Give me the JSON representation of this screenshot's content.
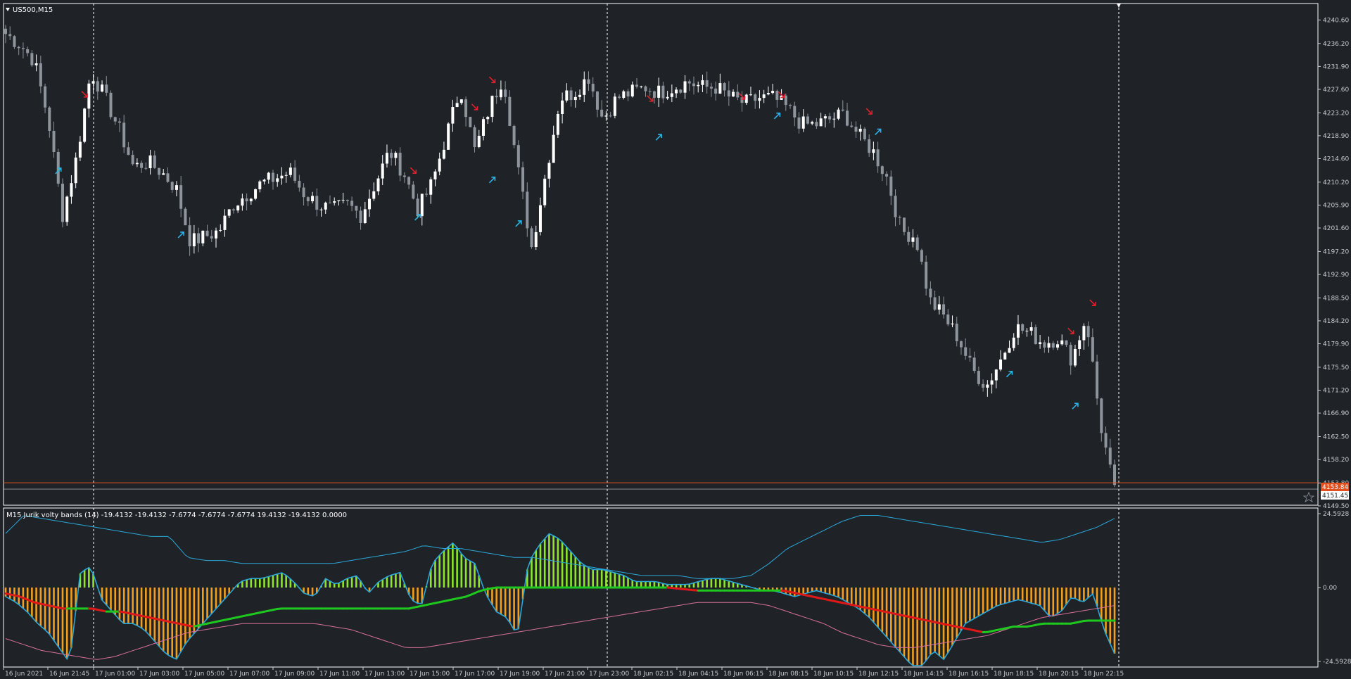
{
  "symbol_label": "US500,M15",
  "indicator_label": "M15 Jurik volty bands (14) -19.4132 -19.4132 -7.6774 -7.6774 -7.6774 19.4132 -19.4132 0.0000",
  "price_badges": {
    "bid": "4153.84",
    "ask": "4151.45"
  },
  "colors": {
    "background": "#1f2328",
    "grid_border": "#ffffff",
    "bull_candle": "#ffffff",
    "bear_candle": "#8d949c",
    "up_arrow": "#2ab3e6",
    "down_arrow": "#e0202a",
    "bid_line": "#e0501e",
    "hist_positive": "#8ee52a",
    "hist_negative": "#f0a01e",
    "upper_band": "#2aa7d8",
    "lower_band": "#d86f9a",
    "jurik_up": "#1fc81f",
    "jurik_down": "#e01818"
  },
  "chart_data": [
    {
      "type": "candlestick",
      "title": "US500,M15",
      "ylim": [
        4149.5,
        4242.5
      ],
      "y_ticks": [
        "4240.60",
        "4236.20",
        "4231.90",
        "4227.60",
        "4223.20",
        "4218.90",
        "4214.60",
        "4210.20",
        "4205.90",
        "4201.60",
        "4197.20",
        "4192.90",
        "4188.50",
        "4184.20",
        "4179.90",
        "4175.50",
        "4171.20",
        "4166.90",
        "4162.50",
        "4158.20",
        "4153.80",
        "4149.50"
      ],
      "x_ticks": [
        "16 Jun 2021",
        "16 Jun 21:45",
        "17 Jun 01:00",
        "17 Jun 03:00",
        "17 Jun 05:00",
        "17 Jun 07:00",
        "17 Jun 09:00",
        "17 Jun 11:00",
        "17 Jun 13:00",
        "17 Jun 15:00",
        "17 Jun 17:00",
        "17 Jun 19:00",
        "17 Jun 21:00",
        "17 Jun 23:00",
        "18 Jun 02:15",
        "18 Jun 04:15",
        "18 Jun 06:15",
        "18 Jun 08:15",
        "18 Jun 10:15",
        "18 Jun 12:15",
        "18 Jun 14:15",
        "18 Jun 16:15",
        "18 Jun 18:15",
        "18 Jun 20:15",
        "18 Jun 22:15"
      ],
      "close_anchors": [
        4238,
        4236,
        4233,
        4222,
        4204,
        4215,
        4231,
        4226,
        4220,
        4213,
        4214,
        4212,
        4209,
        4199,
        4200,
        4201,
        4206,
        4208,
        4210,
        4211,
        4212,
        4208,
        4206,
        4205,
        4206,
        4204,
        4210,
        4216,
        4212,
        4205,
        4210,
        4219,
        4228,
        4216,
        4224,
        4230,
        4213,
        4198,
        4212,
        4226,
        4227,
        4230,
        4222,
        4226,
        4227,
        4228,
        4227,
        4228,
        4229,
        4228,
        4228,
        4226,
        4225,
        4226,
        4226,
        4224,
        4221,
        4221,
        4222,
        4223,
        4219,
        4216,
        4211,
        4201,
        4200,
        4188,
        4185,
        4181,
        4175,
        4172,
        4177,
        4183,
        4182,
        4180,
        4181,
        4177,
        4185,
        4165,
        4152
      ],
      "up_arrows": [
        [
          12,
          4212.3
        ],
        [
          40,
          4200.3
        ],
        [
          94,
          4203.6
        ],
        [
          111,
          4210.6
        ],
        [
          117,
          4202.4
        ],
        [
          149,
          4218.6
        ],
        [
          176,
          4222.6
        ],
        [
          199,
          4219.6
        ],
        [
          229,
          4174.2
        ],
        [
          244,
          4168.2
        ]
      ],
      "down_arrows": [
        [
          18,
          4226.7
        ],
        [
          93,
          4212.4
        ],
        [
          107,
          4224.3
        ],
        [
          111,
          4229.4
        ],
        [
          147,
          4225.9
        ],
        [
          168,
          4226.3
        ],
        [
          177,
          4226.6
        ],
        [
          197,
          4223.5
        ],
        [
          243,
          4182.3
        ],
        [
          248,
          4187.6
        ]
      ],
      "current_price": 4153.84,
      "bars": 254
    },
    {
      "type": "histogram-bands",
      "title": "M15 Jurik volty bands (14)",
      "ylim": [
        -24.5928,
        24.5928
      ],
      "y_ticks": [
        "24.5928",
        "0.00",
        "-24.5928"
      ],
      "histogram_anchors": [
        -3,
        -5,
        -8,
        -12,
        -15,
        -20,
        -25,
        5,
        7,
        -4,
        -8,
        -12,
        -12,
        -14,
        -18,
        -22,
        -24,
        -18,
        -14,
        -10,
        -6,
        -2,
        2,
        3,
        3,
        4,
        5,
        2,
        -2,
        -3,
        3,
        1,
        3,
        4,
        -2,
        2,
        4,
        5,
        -4,
        -6,
        8,
        12,
        15,
        10,
        8,
        -2,
        -8,
        -10,
        -16,
        8,
        14,
        18,
        16,
        12,
        8,
        6,
        6,
        5,
        4,
        2,
        2,
        2,
        1,
        1,
        1,
        2,
        3,
        3,
        2,
        1,
        0,
        -1,
        -1,
        -2,
        -3,
        -2,
        -1,
        -2,
        -3,
        -5,
        -7,
        -10,
        -14,
        -18,
        -22,
        -26,
        -26,
        -21,
        -24,
        -18,
        -12,
        -10,
        -8,
        -6,
        -5,
        -4,
        -5,
        -6,
        -10,
        -8,
        -3,
        -5,
        -2,
        -14,
        -22
      ],
      "upper_band_anchors": [
        18,
        24,
        23,
        22,
        21,
        20,
        19,
        18,
        17,
        17,
        10,
        9,
        9,
        8,
        8,
        8,
        8,
        8,
        8,
        9,
        10,
        11,
        12,
        14,
        13,
        13,
        12,
        11,
        10,
        10,
        9,
        8,
        7,
        6,
        5,
        4,
        4,
        4,
        3,
        3,
        3,
        4,
        8,
        13,
        16,
        19,
        22,
        24,
        24,
        23,
        22,
        21,
        20,
        19,
        18,
        17,
        16,
        15,
        16,
        18,
        20,
        23
      ],
      "lower_band_anchors": [
        -17,
        -19,
        -21,
        -22,
        -23,
        -24,
        -23,
        -21,
        -19,
        -17,
        -15,
        -14,
        -13,
        -12,
        -12,
        -12,
        -12,
        -12,
        -13,
        -14,
        -16,
        -18,
        -20,
        -20,
        -19,
        -18,
        -17,
        -16,
        -15,
        -14,
        -13,
        -12,
        -11,
        -10,
        -9,
        -8,
        -7,
        -6,
        -5,
        -5,
        -5,
        -5,
        -6,
        -8,
        -10,
        -12,
        -15,
        -17,
        -19,
        -20,
        -20,
        -19,
        -18,
        -17,
        -16,
        -14,
        -12,
        -10,
        -9,
        -8,
        -7,
        -6
      ],
      "jurik_anchors": [
        -2,
        -3,
        -5,
        -6,
        -7,
        -7,
        -7,
        -8,
        -8,
        -9,
        -10,
        -11,
        -12,
        -13,
        -12,
        -11,
        -10,
        -9,
        -8,
        -7,
        -7,
        -7,
        -7,
        -7,
        -7,
        -7,
        -7,
        -7,
        -7,
        -6,
        -5,
        -4,
        -3,
        -1,
        0,
        0,
        0,
        0,
        0,
        0,
        0,
        0,
        0,
        0,
        0,
        0,
        0,
        -0.5,
        -1,
        -1,
        -1,
        -1,
        -1,
        -1,
        -1,
        -2,
        -3,
        -4,
        -5,
        -6,
        -7,
        -8,
        -9,
        -10,
        -11,
        -12,
        -13,
        -14,
        -15,
        -14,
        -13,
        -13,
        -12,
        -12,
        -12,
        -11,
        -11,
        -11
      ]
    }
  ]
}
